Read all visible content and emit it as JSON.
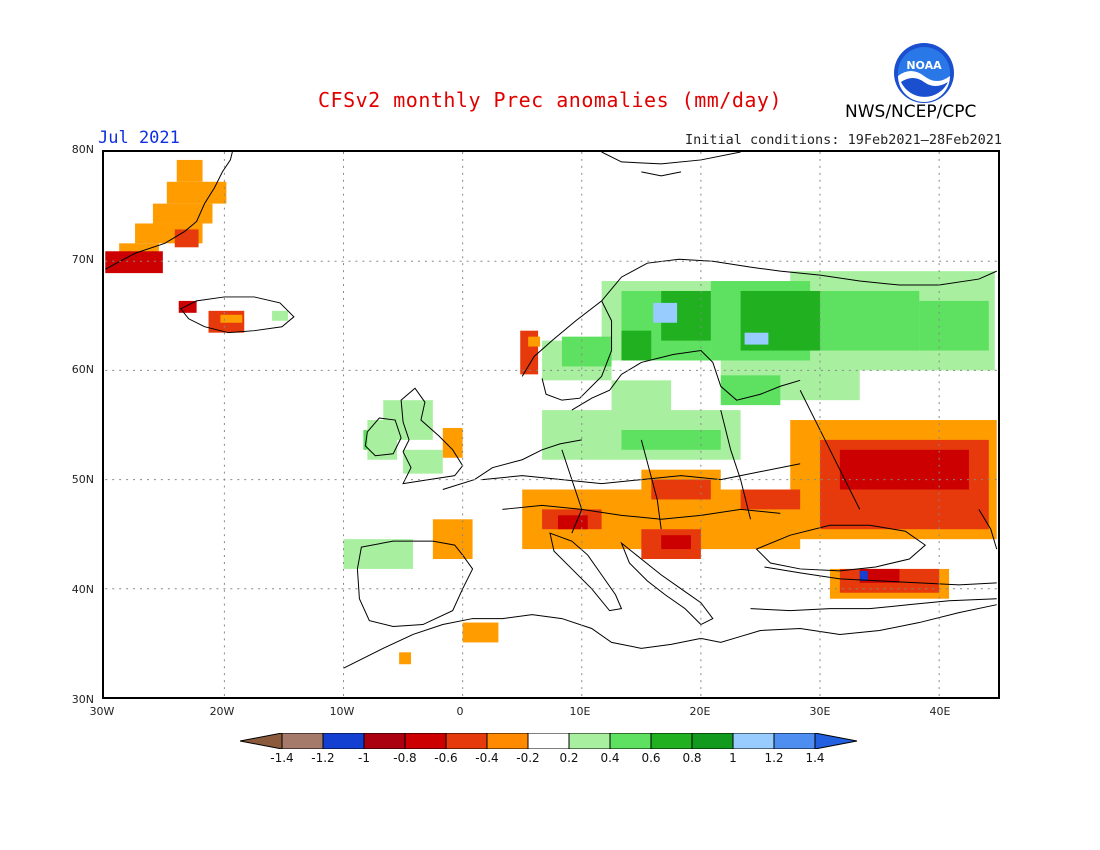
{
  "header": {
    "title": "CFSv2 monthly Prec anomalies (mm/day)",
    "period": "Jul 2021",
    "initial_conditions": "Initial conditions: 19Feb2021–28Feb2021",
    "agency": "NWS/NCEP/CPC",
    "logo_text": "NOAA"
  },
  "map": {
    "lat_labels": [
      "80N",
      "70N",
      "60N",
      "50N",
      "40N",
      "30N"
    ],
    "lon_labels": [
      "30W",
      "20W",
      "10W",
      "0",
      "10E",
      "20E",
      "30E",
      "40E"
    ],
    "projection": "latitude-longitude",
    "grid": "dotted"
  },
  "colorbar": {
    "colors": [
      "#8b5a3c",
      "#a57a6a",
      "#1340d0",
      "#aa0010",
      "#cc0000",
      "#e53a0c",
      "#ff8a00",
      "#ffffff",
      "#a8f0a0",
      "#5ee060",
      "#20b020",
      "#129a1e",
      "#98ccff",
      "#4d8ef0",
      "#2260e0"
    ],
    "labels": [
      "-1.4",
      "-1.2",
      "-1",
      "-0.8",
      "-0.6",
      "-0.4",
      "-0.2",
      "0.2",
      "0.4",
      "0.6",
      "0.8",
      "1",
      "1.2",
      "1.4"
    ]
  }
}
